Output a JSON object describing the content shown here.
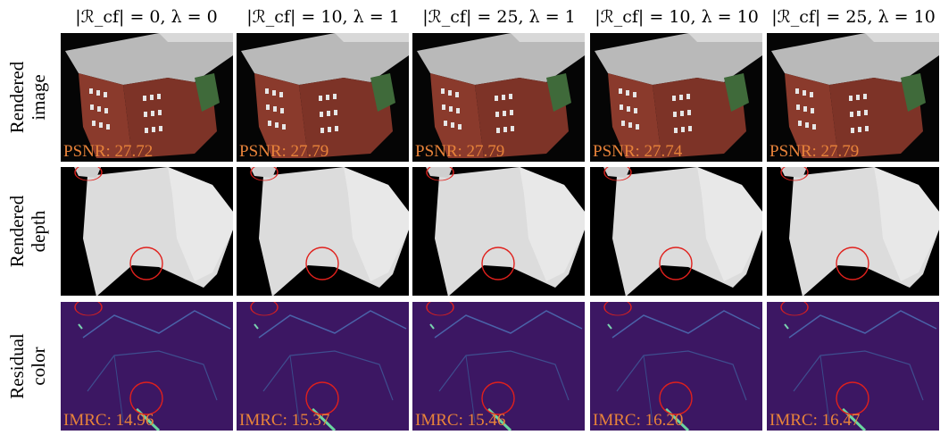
{
  "columns": [
    "|ℛ_cf| = 0, λ = 0",
    "|ℛ_cf| = 10, λ = 1",
    "|ℛ_cf| = 25, λ = 1",
    "|ℛ_cf| = 10, λ = 10",
    "|ℛ_cf| = 25, λ = 10"
  ],
  "rows": [
    {
      "label_line1": "Rendered",
      "label_line2": "image"
    },
    {
      "label_line1": "Rendered",
      "label_line2": "depth"
    },
    {
      "label_line1": "Residual",
      "label_line2": "color"
    }
  ],
  "psnr": [
    "PSNR: 27.72",
    "PSNR: 27.79",
    "PSNR: 27.79",
    "PSNR: 27.74",
    "PSNR: 27.79"
  ],
  "imrc": [
    "IMRC: 14.96",
    "IMRC: 15.37",
    "IMRC: 15.46",
    "IMRC: 16.20",
    "IMRC: 16.47"
  ],
  "colors": {
    "metric_text": "#e8833a",
    "highlight_circle": "#e0201c",
    "brick": "#8a3a2c",
    "roof": "#b9b9b9",
    "residual_bg": "#3c1763"
  }
}
